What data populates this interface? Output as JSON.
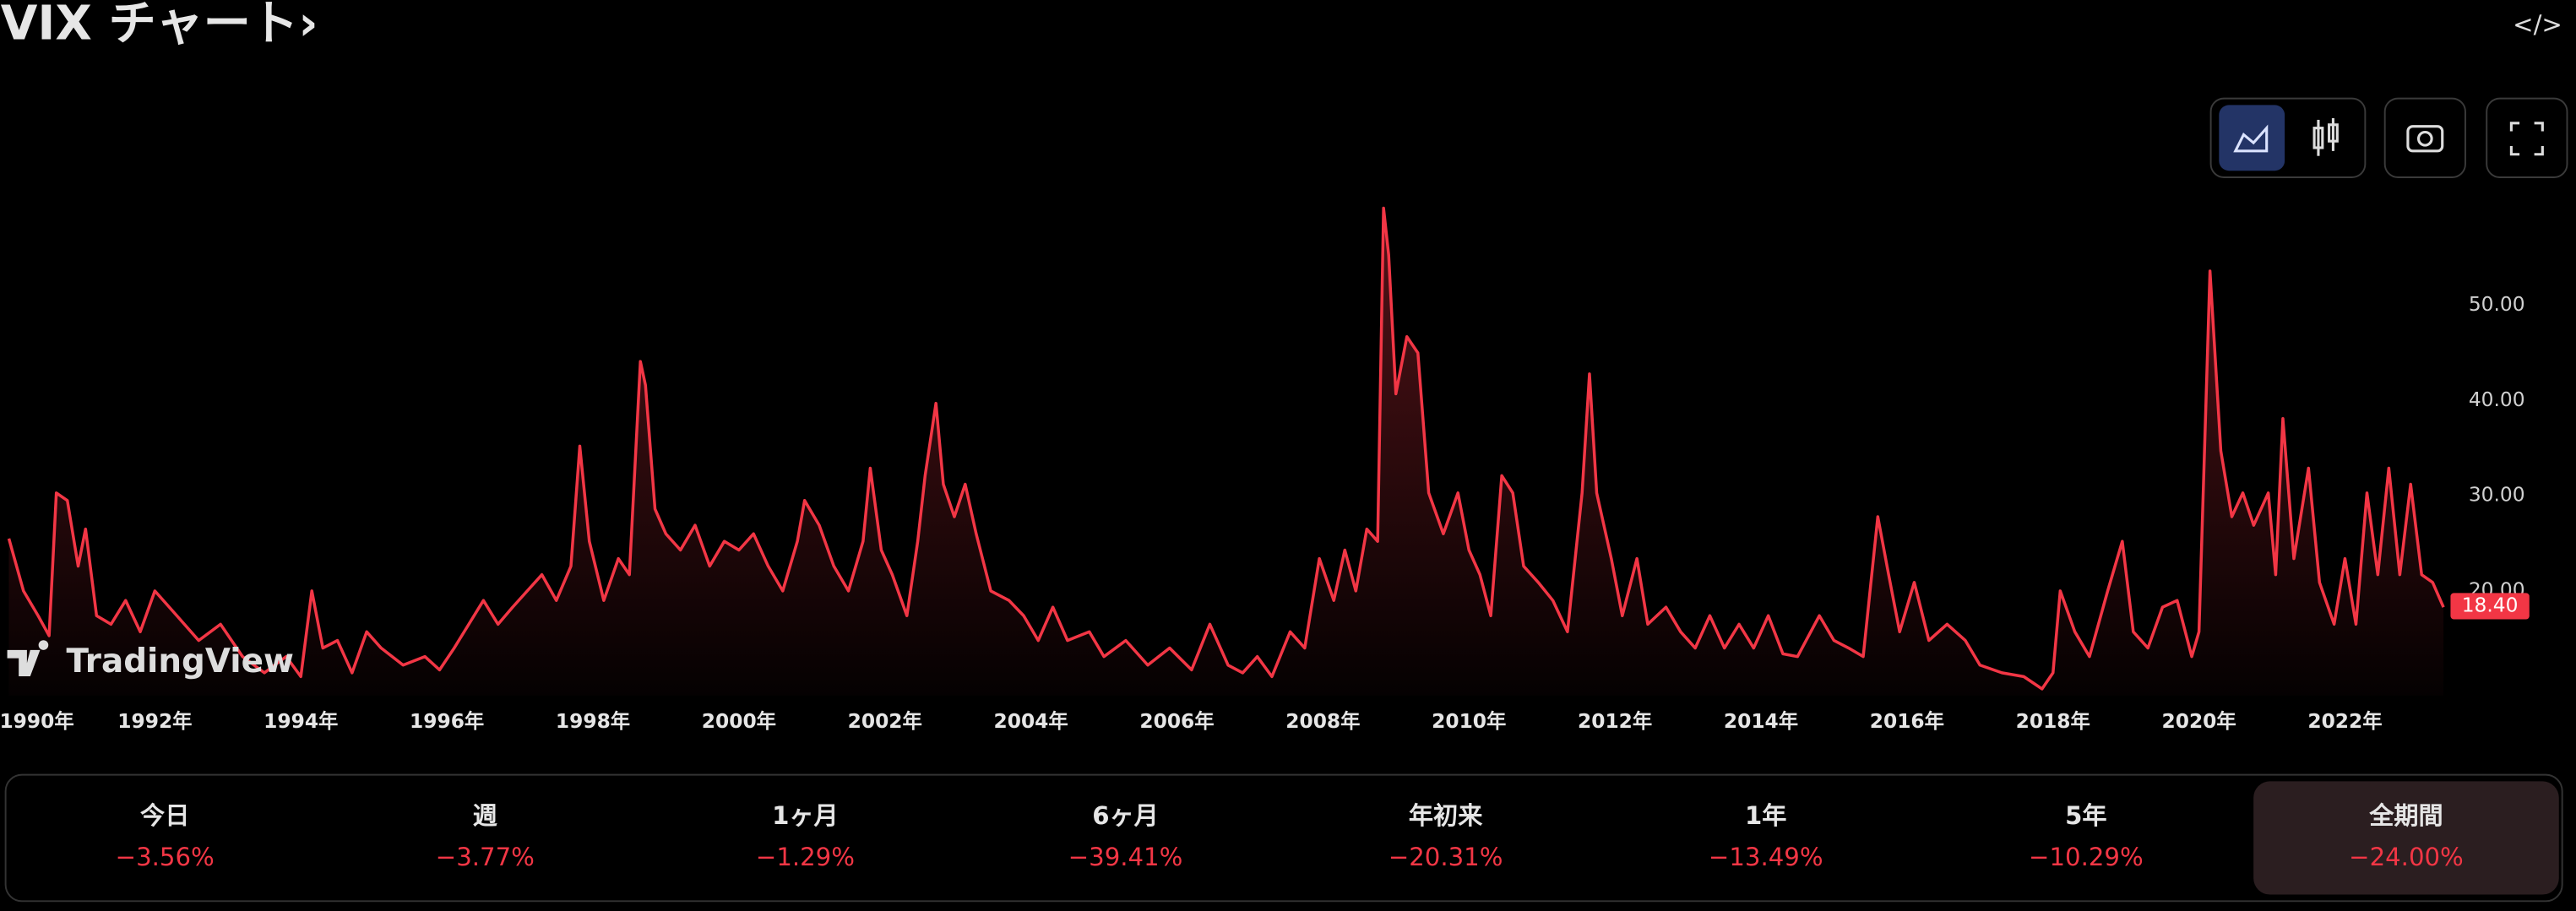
{
  "chart_data": {
    "type": "area",
    "title": "VIX チャート›",
    "watermark": "TradingView",
    "color": "#f23645",
    "x": [
      1990.0,
      1990.2,
      1990.4,
      1990.55,
      1990.65,
      1990.8,
      1990.95,
      1991.05,
      1991.2,
      1991.4,
      1991.6,
      1991.8,
      1992.0,
      1992.3,
      1992.6,
      1992.9,
      1993.2,
      1993.5,
      1993.8,
      1994.0,
      1994.15,
      1994.3,
      1994.5,
      1994.7,
      1994.9,
      1995.1,
      1995.4,
      1995.7,
      1995.9,
      1996.1,
      1996.3,
      1996.5,
      1996.7,
      1996.9,
      1997.1,
      1997.3,
      1997.5,
      1997.7,
      1997.82,
      1997.95,
      1998.15,
      1998.35,
      1998.5,
      1998.65,
      1998.72,
      1998.85,
      1999.0,
      1999.2,
      1999.4,
      1999.6,
      1999.8,
      2000.0,
      2000.2,
      2000.4,
      2000.6,
      2000.8,
      2000.9,
      2001.1,
      2001.3,
      2001.5,
      2001.7,
      2001.8,
      2001.95,
      2002.1,
      2002.3,
      2002.45,
      2002.55,
      2002.7,
      2002.8,
      2002.95,
      2003.1,
      2003.25,
      2003.45,
      2003.7,
      2003.9,
      2004.1,
      2004.3,
      2004.5,
      2004.8,
      2005.0,
      2005.3,
      2005.6,
      2005.9,
      2006.2,
      2006.45,
      2006.7,
      2006.9,
      2007.1,
      2007.3,
      2007.55,
      2007.75,
      2007.95,
      2008.15,
      2008.3,
      2008.45,
      2008.6,
      2008.75,
      2008.83,
      2008.9,
      2009.0,
      2009.15,
      2009.3,
      2009.45,
      2009.65,
      2009.85,
      2010.0,
      2010.15,
      2010.3,
      2010.45,
      2010.6,
      2010.75,
      2010.95,
      2011.15,
      2011.35,
      2011.55,
      2011.65,
      2011.75,
      2011.95,
      2012.1,
      2012.3,
      2012.45,
      2012.7,
      2012.9,
      2013.1,
      2013.3,
      2013.5,
      2013.7,
      2013.9,
      2014.1,
      2014.3,
      2014.5,
      2014.8,
      2015.0,
      2015.2,
      2015.4,
      2015.6,
      2015.75,
      2015.9,
      2016.1,
      2016.3,
      2016.55,
      2016.8,
      2017.0,
      2017.3,
      2017.6,
      2017.85,
      2018.0,
      2018.1,
      2018.3,
      2018.5,
      2018.75,
      2018.95,
      2019.1,
      2019.3,
      2019.5,
      2019.7,
      2019.9,
      2020.0,
      2020.15,
      2020.3,
      2020.45,
      2020.6,
      2020.75,
      2020.95,
      2021.05,
      2021.15,
      2021.3,
      2021.5,
      2021.65,
      2021.85,
      2022.0,
      2022.15,
      2022.3,
      2022.45,
      2022.6,
      2022.75,
      2022.9,
      2023.05,
      2023.2,
      2023.35
    ],
    "values": [
      25.5,
      20,
      17.4,
      15.3,
      30.3,
      29.5,
      22.6,
      26.5,
      17.4,
      16.5,
      19,
      15.7,
      20,
      17.4,
      14.8,
      16.5,
      13.1,
      11.4,
      13.1,
      11,
      20,
      14,
      14.8,
      11.4,
      15.7,
      14,
      12.2,
      13.1,
      11.7,
      14,
      16.5,
      19,
      16.5,
      18.3,
      20,
      21.7,
      19,
      22.6,
      35.2,
      25.2,
      19,
      23.4,
      21.7,
      44.1,
      41.6,
      28.6,
      26,
      24.3,
      26.9,
      22.6,
      25.2,
      24.3,
      26,
      22.6,
      20,
      25.2,
      29.5,
      26.9,
      22.6,
      20,
      25.2,
      32.9,
      24.3,
      21.7,
      17.4,
      25.2,
      32.1,
      39.7,
      31.2,
      27.8,
      31.2,
      26,
      20,
      19,
      17.4,
      14.8,
      18.3,
      14.8,
      15.7,
      13.1,
      14.8,
      12.2,
      14,
      11.7,
      16.5,
      12.2,
      11.4,
      13.1,
      11,
      15.7,
      14,
      23.4,
      19,
      24.3,
      20,
      26.5,
      25.2,
      60.2,
      55.3,
      40.7,
      46.7,
      45,
      30.3,
      26,
      30.3,
      24.3,
      21.7,
      17.4,
      32.1,
      30.3,
      22.6,
      20.9,
      19,
      15.7,
      30.3,
      42.8,
      30.3,
      23.4,
      17.4,
      23.4,
      16.5,
      18.3,
      15.7,
      14,
      17.4,
      14,
      16.5,
      14,
      17.4,
      13.4,
      13.1,
      17.4,
      14.8,
      14,
      13.1,
      27.8,
      21.7,
      15.7,
      20.9,
      14.8,
      16.5,
      14.8,
      12.2,
      11.4,
      11,
      9.7,
      11.4,
      20,
      15.7,
      13.1,
      20,
      25.2,
      15.7,
      14,
      18.3,
      19,
      13.1,
      15.7,
      53.6,
      34.7,
      27.8,
      30.3,
      26.9,
      30.3,
      21.7,
      38.1,
      23.4,
      32.9,
      20.9,
      16.5,
      23.4,
      16.5,
      30.3,
      21.7,
      32.9,
      21.7,
      31.2,
      21.7,
      20.9,
      18.3
    ],
    "xlim": [
      1990,
      2025
    ],
    "xticks": [
      {
        "value": 1990,
        "label": "1990年"
      },
      {
        "value": 1992,
        "label": "1992年"
      },
      {
        "value": 1994,
        "label": "1994年"
      },
      {
        "value": 1996,
        "label": "1996年"
      },
      {
        "value": 1998,
        "label": "1998年"
      },
      {
        "value": 2000,
        "label": "2000年"
      },
      {
        "value": 2002,
        "label": "2002年"
      },
      {
        "value": 2004,
        "label": "2004年"
      },
      {
        "value": 2006,
        "label": "2006年"
      },
      {
        "value": 2008,
        "label": "2008年"
      },
      {
        "value": 2010,
        "label": "2010年"
      },
      {
        "value": 2012,
        "label": "2012年"
      },
      {
        "value": 2014,
        "label": "2014年"
      },
      {
        "value": 2016,
        "label": "2016年"
      },
      {
        "value": 2018,
        "label": "2018年"
      },
      {
        "value": 2020,
        "label": "2020年"
      },
      {
        "value": 2022,
        "label": "2022年"
      }
    ],
    "ylim": [
      9,
      63
    ],
    "yticks": [
      {
        "value": 20,
        "label": "20.00"
      },
      {
        "value": 30,
        "label": "30.00"
      },
      {
        "value": 40,
        "label": "40.00"
      },
      {
        "value": 50,
        "label": "50.00"
      }
    ],
    "last_price": {
      "value": 18.4,
      "label": "18.40"
    }
  },
  "periods": [
    {
      "label": "今日",
      "change": "−3.56%"
    },
    {
      "label": "週",
      "change": "−3.77%"
    },
    {
      "label": "1ヶ月",
      "change": "−1.29%"
    },
    {
      "label": "6ヶ月",
      "change": "−39.41%"
    },
    {
      "label": "年初来",
      "change": "−20.31%"
    },
    {
      "label": "1年",
      "change": "−13.49%"
    },
    {
      "label": "5年",
      "change": "−10.29%"
    },
    {
      "label": "全期間",
      "change": "−24.00%"
    }
  ],
  "active_period": 7
}
